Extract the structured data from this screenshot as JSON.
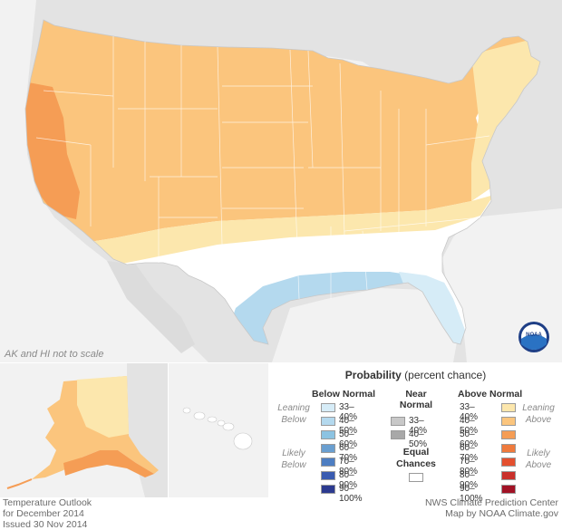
{
  "map_note": "AK and HI not to scale",
  "legend": {
    "title": "Probability",
    "title_suffix": " (percent chance)",
    "below_heading": "Below Normal",
    "near_heading_1": "Near",
    "near_heading_2": "Normal",
    "above_heading": "Above Normal",
    "leaning": "Leaning",
    "below_word": "Below",
    "above_word": "Above",
    "likely": "Likely",
    "equal_1": "Equal",
    "equal_2": "Chances",
    "below_bins": [
      {
        "label": "33–40%",
        "color": "#d6ecf7"
      },
      {
        "label": "40–50%",
        "color": "#b4d9ee"
      },
      {
        "label": "50–60%",
        "color": "#8cc3e2"
      },
      {
        "label": "60–70%",
        "color": "#6a9fd0"
      },
      {
        "label": "70–80%",
        "color": "#4d7ec2"
      },
      {
        "label": "80–90%",
        "color": "#3a5bb0"
      },
      {
        "label": "90–100%",
        "color": "#2c3a8f"
      }
    ],
    "near_bins": [
      {
        "label": "33–40%",
        "color": "#c8c8c8"
      },
      {
        "label": "40–50%",
        "color": "#a8a8a8"
      }
    ],
    "above_bins": [
      {
        "label": "33–40%",
        "color": "#fce7ad"
      },
      {
        "label": "40–50%",
        "color": "#fbc57d"
      },
      {
        "label": "50–60%",
        "color": "#f59d55"
      },
      {
        "label": "60–70%",
        "color": "#ef7a3d"
      },
      {
        "label": "70–80%",
        "color": "#e4502f"
      },
      {
        "label": "80–90%",
        "color": "#c9302b"
      },
      {
        "label": "90–100%",
        "color": "#a11225"
      }
    ]
  },
  "footer": {
    "left_1": "Temperature Outlook",
    "left_2": "for December 2014",
    "left_3": "Issued 30 Nov 2014",
    "right_1": "NWS Climate Prediction Center",
    "right_2": "Map by NOAA Climate.gov"
  },
  "logo_text": "NOAA"
}
